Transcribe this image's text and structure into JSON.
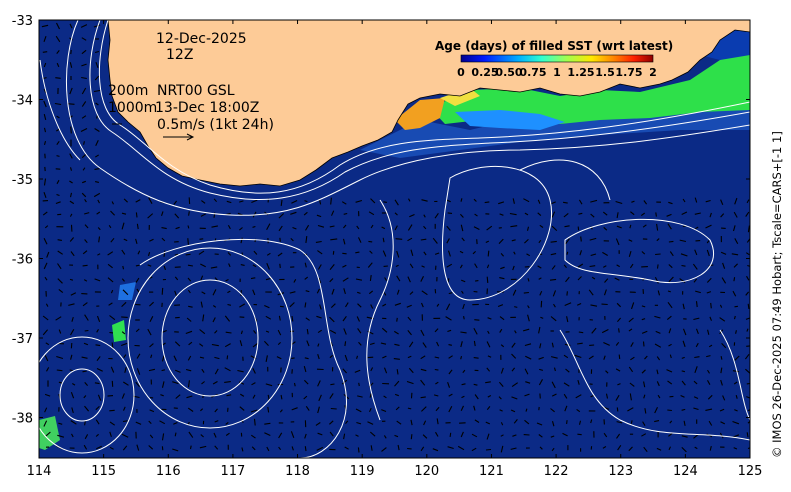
{
  "map": {
    "date": "12-Dec-2025",
    "hour": "12Z",
    "contour_label_200": "200m",
    "contour_label_1000": "1000m",
    "current_product": "NRT00 GSL",
    "current_time": "13-Dec 18:00Z",
    "scale_label": "0.5m/s (1kt 24h)",
    "credit": "© IMOS 26-Dec-2025 07:49 Hobart; Tscale=CARS+[-1 1]",
    "lon_ticks": [
      "114",
      "115",
      "116",
      "117",
      "118",
      "119",
      "120",
      "121",
      "122",
      "123",
      "124",
      "125"
    ],
    "lat_ticks": [
      "-33",
      "-34",
      "-35",
      "-36",
      "-37",
      "-38"
    ],
    "colors": {
      "land": "#fdcb97",
      "ocean": "#0b2a86",
      "contour": "#ffffff"
    }
  },
  "colorbar": {
    "title": "Age (days) of filled SST (wrt latest)",
    "ticks": [
      "0",
      "0.25",
      "0.50",
      "0.75",
      "1",
      "1.25",
      "1.5",
      "1.75",
      "2"
    ],
    "stops": [
      "#00008f",
      "#0010ff",
      "#00a8ff",
      "#40ffc0",
      "#a0ff60",
      "#ffe800",
      "#ff8000",
      "#ff2000",
      "#8f0000"
    ]
  }
}
